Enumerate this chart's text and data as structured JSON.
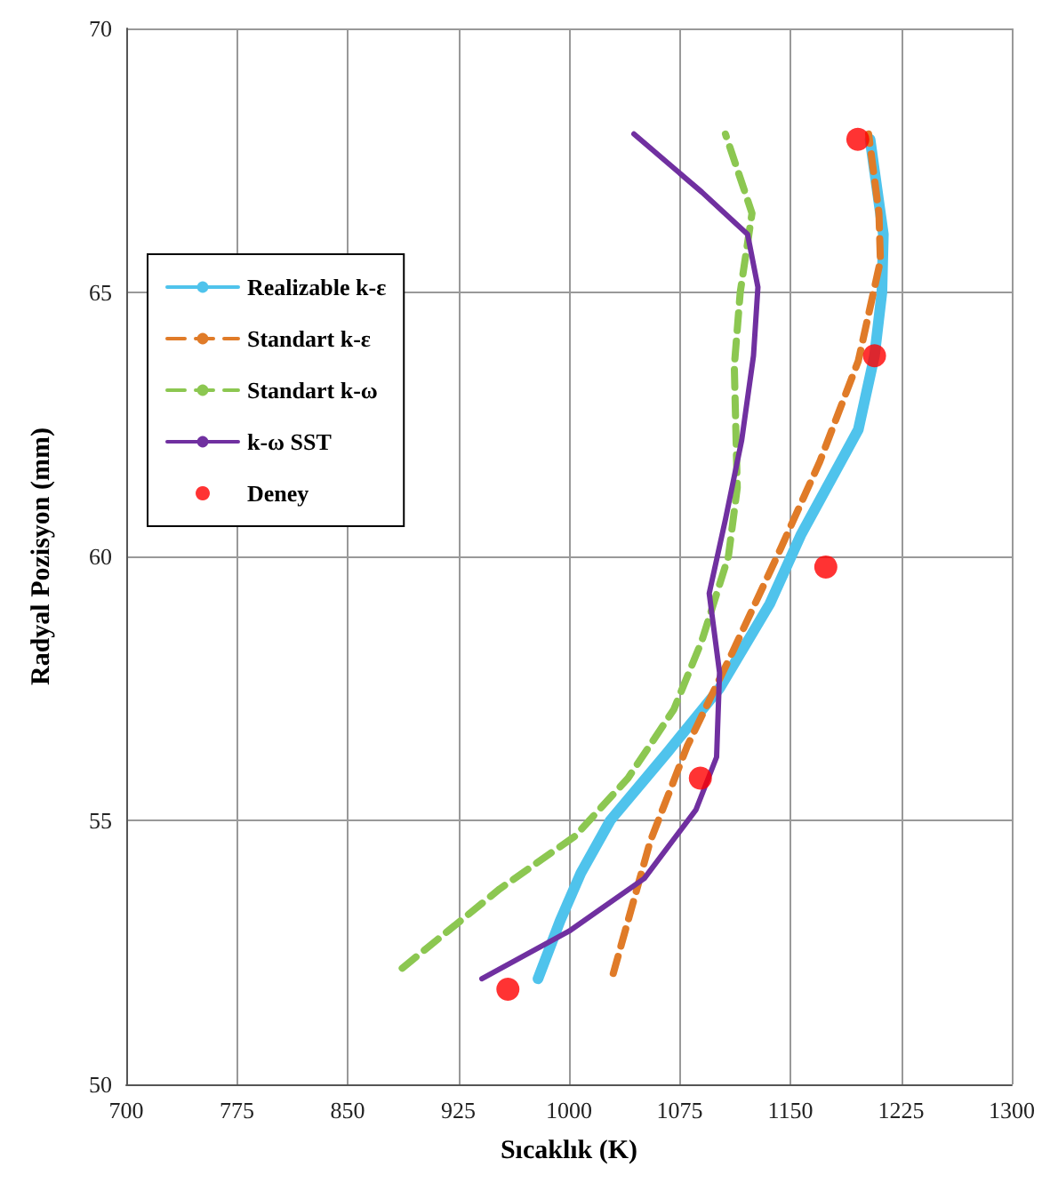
{
  "chart_data": {
    "type": "line",
    "xlabel": "Sıcaklık (K)",
    "ylabel": "Radyal Pozisyon (mm)",
    "xlim": [
      700,
      1300
    ],
    "xticks": [
      700,
      775,
      850,
      925,
      1000,
      1075,
      1150,
      1225,
      1300
    ],
    "ylim": [
      50,
      70
    ],
    "yticks": [
      50,
      55,
      60,
      65,
      70
    ],
    "grid": true,
    "legend": "top left",
    "series": [
      {
        "name": "Realizable k-ε",
        "color": "#4fc3ec",
        "line_style": "solid",
        "marker": "none",
        "x": [
          979,
          994,
          1008,
          1028,
          1067,
          1102,
          1136,
          1157,
          1196,
          1207,
          1212,
          1213,
          1204
        ],
        "values": [
          52,
          53.1,
          54,
          55,
          56.3,
          57.5,
          59.1,
          60.4,
          62.4,
          63.8,
          65,
          66.1,
          67.9
        ]
      },
      {
        "name": "Standart k-ε",
        "color": "#e07b28",
        "line_style": "dashed",
        "marker": "none",
        "x": [
          1030,
          1055,
          1080,
          1111,
          1141,
          1170,
          1196,
          1211,
          1210,
          1203
        ],
        "values": [
          52.1,
          54.6,
          56.4,
          58.2,
          60,
          61.8,
          63.7,
          65.6,
          66.5,
          68
        ]
      },
      {
        "name": "Standart k-ω",
        "color": "#8cc751",
        "line_style": "dashed",
        "marker": "none",
        "x": [
          887,
          953,
          1004,
          1040,
          1071,
          1090,
          1108,
          1114,
          1112,
          1116,
          1124,
          1106
        ],
        "values": [
          52.2,
          53.7,
          54.7,
          55.8,
          57.1,
          58.4,
          60,
          61.3,
          63.6,
          65,
          66.5,
          68
        ]
      },
      {
        "name": "k-ω SST",
        "color": "#7030a0",
        "line_style": "solid",
        "marker": "none",
        "x": [
          941,
          1000,
          1051,
          1086,
          1100,
          1102,
          1095,
          1106,
          1117,
          1125,
          1128,
          1121,
          1090,
          1044
        ],
        "values": [
          52,
          52.9,
          53.9,
          55.2,
          56.2,
          57.8,
          59.3,
          60.7,
          62.2,
          63.8,
          65.1,
          66.1,
          66.9,
          68
        ]
      },
      {
        "name": "Deney",
        "type": "scatter",
        "color": "#ff0000",
        "marker": "circle",
        "x": [
          958.6,
          1089,
          1174,
          1207,
          1195.7
        ],
        "values": [
          51.8,
          55.8,
          59.8,
          63.8,
          67.9
        ]
      }
    ]
  }
}
